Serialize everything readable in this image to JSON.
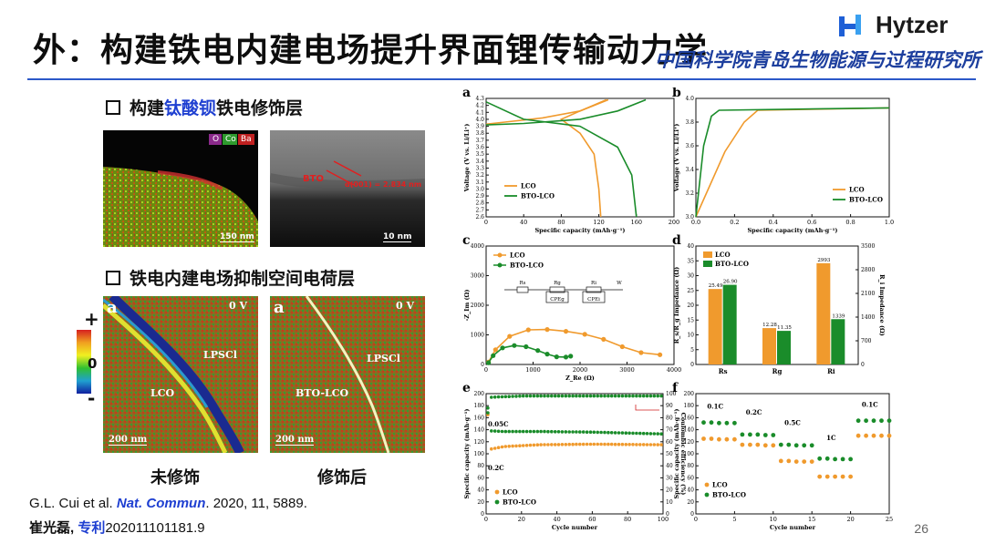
{
  "title": "外：构建铁电内建电场提升界面锂传输动力学",
  "logo": {
    "name": "Hytzer",
    "institution": "中国科学院青岛生物能源与过程研究所"
  },
  "sections": {
    "s1": {
      "prefix": "构建",
      "highlight": "钛酸钡",
      "suffix": "铁电修饰层"
    },
    "s2": {
      "label": "铁电内建电场抑制空间电荷层"
    }
  },
  "images": {
    "eds": {
      "legend": [
        "O",
        "Co",
        "Ba"
      ],
      "scale": "150 nm"
    },
    "tem": {
      "label_bto": "BTO",
      "label_d": "d(001) = 2.834 nm",
      "scale": "10 nm"
    },
    "map_a": {
      "panel": "a",
      "voltage": "0 V",
      "label1": "LPSCl",
      "label2": "LCO",
      "scale": "200 nm"
    },
    "map_b": {
      "panel": "a",
      "voltage": "0 V",
      "label1": "LPSCl",
      "label2": "BTO-LCO",
      "scale": "200 nm"
    },
    "colorbar": {
      "plus": "+",
      "zero": "0",
      "minus": "-"
    }
  },
  "captions": {
    "left": "未修饰",
    "right": "修饰后"
  },
  "refs": {
    "line1_pre": "G.L. Cui et al. ",
    "line1_journal": "Nat. Commun",
    "line1_post": ". 2020, 11, 5889.",
    "line2_name": "崔光磊, ",
    "line2_patent": "专利",
    "line2_num": "202011101181.9"
  },
  "page_number": "26",
  "colors": {
    "lco": "#f09a2d",
    "bto": "#1a8c2a",
    "accent": "#1e3fd1"
  },
  "chart_data": [
    {
      "panel": "a",
      "type": "line",
      "xlabel": "Specific capacity (mAh·g⁻¹)",
      "ylabel": "Voltage (V vs. Li/Li⁺)",
      "xlim": [
        0,
        200
      ],
      "ylim": [
        2.6,
        4.3
      ],
      "xticks": [
        "0",
        "40",
        "80",
        "120",
        "160",
        "200"
      ],
      "yticks": [
        "2.6",
        "2.7",
        "2.8",
        "2.9",
        "3.0",
        "3.1",
        "3.2",
        "3.3",
        "3.4",
        "3.5",
        "3.6",
        "3.7",
        "3.8",
        "3.9",
        "4.0",
        "4.1",
        "4.2",
        "4.3"
      ],
      "series": [
        {
          "name": "LCO",
          "color": "#f09a2d",
          "points": [
            [
              0,
              3.93
            ],
            [
              20,
              3.96
            ],
            [
              60,
              4.02
            ],
            [
              100,
              4.12
            ],
            [
              130,
              4.28
            ],
            [
              128,
              4.28
            ],
            [
              100,
              4.12
            ],
            [
              80,
              4.0
            ],
            [
              100,
              3.8
            ],
            [
              115,
              3.5
            ],
            [
              120,
              3.0
            ],
            [
              122,
              2.6
            ]
          ]
        },
        {
          "name": "BTO-LCO",
          "color": "#1a8c2a",
          "points": [
            [
              0,
              3.92
            ],
            [
              40,
              3.94
            ],
            [
              100,
              4.0
            ],
            [
              140,
              4.12
            ],
            [
              170,
              4.28
            ],
            [
              0,
              4.25
            ],
            [
              40,
              4.0
            ],
            [
              100,
              3.9
            ],
            [
              140,
              3.6
            ],
            [
              155,
              3.2
            ],
            [
              160,
              2.6
            ]
          ]
        }
      ]
    },
    {
      "panel": "b",
      "type": "line",
      "xlabel": "Specific capacity (mAh·g⁻¹)",
      "ylabel": "Voltage (V vs. Li/Li⁺)",
      "xlim": [
        0,
        1.0
      ],
      "ylim": [
        3.0,
        4.0
      ],
      "xticks": [
        "0.0",
        "0.2",
        "0.4",
        "0.6",
        "0.8",
        "1.0"
      ],
      "yticks": [
        "3.0",
        "3.2",
        "3.4",
        "3.6",
        "3.8",
        "4.0"
      ],
      "series": [
        {
          "name": "LCO",
          "color": "#f09a2d",
          "points": [
            [
              0,
              3.0
            ],
            [
              0.15,
              3.55
            ],
            [
              0.25,
              3.8
            ],
            [
              0.32,
              3.9
            ],
            [
              1.0,
              3.92
            ]
          ]
        },
        {
          "name": "BTO-LCO",
          "color": "#1a8c2a",
          "points": [
            [
              0,
              3.0
            ],
            [
              0.04,
              3.6
            ],
            [
              0.08,
              3.85
            ],
            [
              0.12,
              3.9
            ],
            [
              1.0,
              3.92
            ]
          ]
        }
      ]
    },
    {
      "panel": "c",
      "type": "scatter",
      "xlabel": "Z_Re (Ω)",
      "ylabel": "-Z_Im (Ω)",
      "xlim": [
        0,
        4000
      ],
      "ylim": [
        0,
        4000
      ],
      "xticks": [
        "0",
        "1000",
        "2000",
        "3000",
        "4000"
      ],
      "yticks": [
        "0",
        "1000",
        "2000",
        "3000",
        "4000"
      ],
      "circuit_labels": [
        "Rs",
        "Rg",
        "CPEg",
        "Ri",
        "CPEi",
        "W"
      ],
      "series": [
        {
          "name": "LCO",
          "color": "#f09a2d",
          "points": [
            [
              50,
              80
            ],
            [
              200,
              500
            ],
            [
              500,
              950
            ],
            [
              900,
              1170
            ],
            [
              1300,
              1180
            ],
            [
              1700,
              1120
            ],
            [
              2100,
              1020
            ],
            [
              2500,
              850
            ],
            [
              2900,
              600
            ],
            [
              3300,
              400
            ],
            [
              3700,
              330
            ]
          ]
        },
        {
          "name": "BTO-LCO",
          "color": "#1a8c2a",
          "points": [
            [
              50,
              60
            ],
            [
              150,
              300
            ],
            [
              350,
              560
            ],
            [
              600,
              640
            ],
            [
              850,
              600
            ],
            [
              1100,
              470
            ],
            [
              1300,
              350
            ],
            [
              1500,
              260
            ],
            [
              1700,
              250
            ],
            [
              1800,
              280
            ]
          ]
        }
      ]
    },
    {
      "panel": "d",
      "type": "bar",
      "ylabel_left": "R_s/R_g Impedance (Ω)",
      "ylabel_right": "R_i Impedance (Ω)",
      "categories": [
        "Rs",
        "Rg",
        "Ri"
      ],
      "ylim_left": [
        0,
        40
      ],
      "ylim_right": [
        0,
        3500
      ],
      "yticks_left": [
        "0",
        "5",
        "10",
        "15",
        "20",
        "25",
        "30",
        "35",
        "40"
      ],
      "yticks_right": [
        "0",
        "700",
        "1400",
        "2100",
        "2800",
        "3500"
      ],
      "series": [
        {
          "name": "LCO",
          "color": "#f09a2d",
          "values": [
            25.49,
            12.28,
            2993
          ],
          "labels": [
            "25.49",
            "12.28",
            "2993"
          ]
        },
        {
          "name": "BTO-LCO",
          "color": "#1a8c2a",
          "values": [
            26.9,
            11.35,
            1339
          ],
          "labels": [
            "26.90",
            "11.35",
            "1339"
          ]
        }
      ]
    },
    {
      "panel": "e",
      "type": "scatter",
      "xlabel": "Cycle number",
      "ylabel": "Specific capacity (mAh·g⁻¹)",
      "ylabel_right": "Coulombic efficiency (%)",
      "xlim": [
        0,
        100
      ],
      "ylim": [
        0,
        200
      ],
      "ylim_right": [
        0,
        100
      ],
      "xticks": [
        "0",
        "20",
        "40",
        "60",
        "80",
        "100"
      ],
      "yticks": [
        "0",
        "20",
        "40",
        "60",
        "80",
        "100",
        "120",
        "140",
        "160",
        "180",
        "200"
      ],
      "yticks_right": [
        "0",
        "10",
        "20",
        "30",
        "40",
        "50",
        "60",
        "70",
        "80",
        "90",
        "100"
      ],
      "annotations": [
        "0.05C",
        "0.2C"
      ],
      "series": [
        {
          "name": "LCO",
          "color": "#f09a2d",
          "points": [
            [
              1,
              165
            ],
            [
              2,
              160
            ],
            [
              3,
              108
            ],
            [
              10,
              112
            ],
            [
              30,
              115
            ],
            [
              60,
              116
            ],
            [
              100,
              115
            ]
          ]
        },
        {
          "name": "BTO-LCO",
          "color": "#1a8c2a",
          "points": [
            [
              1,
              168
            ],
            [
              2,
              165
            ],
            [
              3,
              138
            ],
            [
              10,
              137
            ],
            [
              30,
              137
            ],
            [
              60,
              136
            ],
            [
              100,
              133
            ]
          ]
        },
        {
          "name": "BTO-LCO CE",
          "color": "#1a8c2a",
          "points": [
            [
              1,
              88
            ],
            [
              3,
              97
            ],
            [
              20,
              98
            ],
            [
              60,
              98
            ],
            [
              100,
              98
            ]
          ]
        }
      ]
    },
    {
      "panel": "f",
      "type": "scatter",
      "xlabel": "Cycle number",
      "ylabel": "Specific capacity (mAh·g⁻¹)",
      "xlim": [
        0,
        25
      ],
      "ylim": [
        0,
        200
      ],
      "xticks": [
        "0",
        "5",
        "10",
        "15",
        "20",
        "25"
      ],
      "yticks": [
        "0",
        "20",
        "40",
        "60",
        "80",
        "100",
        "120",
        "140",
        "160",
        "180",
        "200"
      ],
      "rate_labels": [
        "0.1C",
        "0.2C",
        "0.5C",
        "1C",
        "0.1C"
      ],
      "series": [
        {
          "name": "LCO",
          "color": "#f09a2d",
          "points": [
            [
              1,
              125
            ],
            [
              2,
              125
            ],
            [
              3,
              124
            ],
            [
              4,
              124
            ],
            [
              5,
              124
            ],
            [
              6,
              115
            ],
            [
              7,
              115
            ],
            [
              8,
              115
            ],
            [
              9,
              114
            ],
            [
              10,
              114
            ],
            [
              11,
              88
            ],
            [
              12,
              88
            ],
            [
              13,
              87
            ],
            [
              14,
              87
            ],
            [
              15,
              87
            ],
            [
              16,
              62
            ],
            [
              17,
              62
            ],
            [
              18,
              62
            ],
            [
              19,
              62
            ],
            [
              20,
              62
            ],
            [
              21,
              130
            ],
            [
              22,
              130
            ],
            [
              23,
              130
            ],
            [
              24,
              130
            ],
            [
              25,
              130
            ]
          ]
        },
        {
          "name": "BTO-LCO",
          "color": "#1a8c2a",
          "points": [
            [
              1,
              152
            ],
            [
              2,
              152
            ],
            [
              3,
              151
            ],
            [
              4,
              151
            ],
            [
              5,
              151
            ],
            [
              6,
              132
            ],
            [
              7,
              132
            ],
            [
              8,
              132
            ],
            [
              9,
              131
            ],
            [
              10,
              131
            ],
            [
              11,
              115
            ],
            [
              12,
              115
            ],
            [
              13,
              114
            ],
            [
              14,
              114
            ],
            [
              15,
              114
            ],
            [
              16,
              92
            ],
            [
              17,
              92
            ],
            [
              18,
              91
            ],
            [
              19,
              91
            ],
            [
              20,
              91
            ],
            [
              21,
              155
            ],
            [
              22,
              155
            ],
            [
              23,
              155
            ],
            [
              24,
              155
            ],
            [
              25,
              155
            ]
          ]
        }
      ]
    }
  ]
}
